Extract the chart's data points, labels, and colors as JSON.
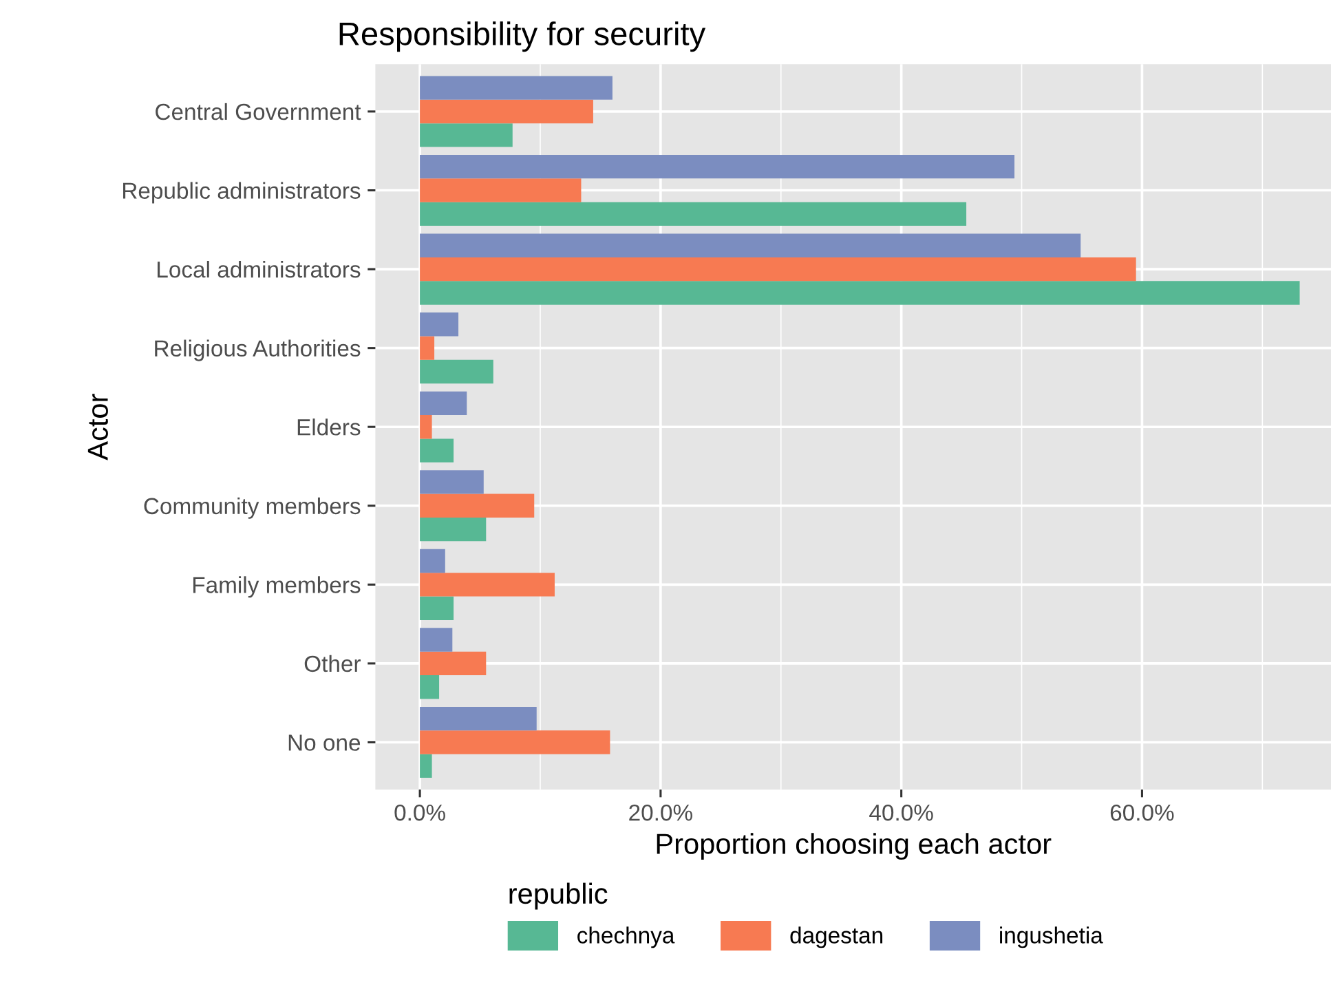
{
  "chart_data": {
    "type": "bar",
    "orientation": "horizontal",
    "title": "Responsibility for security",
    "xlabel": "Proportion choosing each actor",
    "ylabel": "Actor",
    "legend_title": "republic",
    "legend": "bottom",
    "grid": true,
    "categories": [
      "Central Government",
      "Republic administrators",
      "Local administrators",
      "Religious Authorities",
      "Elders",
      "Community members",
      "Family members",
      "Other",
      "No one"
    ],
    "series": [
      {
        "name": "chechnya",
        "color": "#57b894",
        "values": [
          7.7,
          45.4,
          73.1,
          6.1,
          2.8,
          5.5,
          2.8,
          1.6,
          1.0
        ]
      },
      {
        "name": "dagestan",
        "color": "#f77a52",
        "values": [
          14.4,
          13.4,
          59.5,
          1.2,
          1.0,
          9.5,
          11.2,
          5.5,
          15.8
        ]
      },
      {
        "name": "ingushetia",
        "color": "#7b8dc0",
        "values": [
          16.0,
          49.4,
          54.9,
          3.2,
          3.9,
          5.3,
          2.1,
          2.7,
          9.7
        ]
      }
    ],
    "xlim": [
      -3.7,
      75.7
    ],
    "xticks": [
      {
        "value": 0,
        "label": "0.0%"
      },
      {
        "value": 20,
        "label": "20.0%"
      },
      {
        "value": 40,
        "label": "40.0%"
      },
      {
        "value": 60,
        "label": "60.0%"
      }
    ]
  }
}
